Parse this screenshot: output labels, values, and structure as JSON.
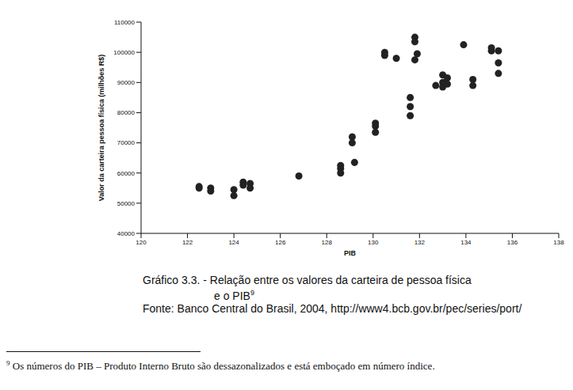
{
  "chart_data": {
    "type": "scatter",
    "title": [
      "Gráfico 3.3. - Relação entre os valores da carteira de pessoa física",
      "e o PIB"
    ],
    "annotations": [
      "9",
      "Fonte: Banco Central do Brasil, 2004, http://www4.bcb.gov.br/pec/series/port/",
      "9",
      "Os números do PIB – Produto Interno Bruto são dessazonalizados e está emboçado em número índice."
    ],
    "x_label": "PIB",
    "y_label": "Valor da carteira pessoa física (milhões R$)",
    "x": [
      122.5,
      122.5,
      123,
      123,
      124,
      124,
      124.4,
      124.4,
      124.7,
      124.7,
      126.8,
      128.6,
      128.6,
      128.6,
      129.1,
      129.1,
      129.2,
      130.1,
      130.1,
      130.1,
      130.5,
      130.5,
      131,
      131.6,
      131.6,
      131.6,
      131.8,
      131.8,
      131.8,
      131.9,
      132.7,
      133,
      133,
      133,
      133.2,
      133.2,
      133.9,
      134.3,
      134.3,
      135.1,
      135.1,
      135.4,
      135.4,
      135.4
    ],
    "values": [
      55500,
      55000,
      55000,
      54000,
      54500,
      52500,
      57000,
      56000,
      56500,
      55000,
      59000,
      62500,
      61500,
      60000,
      72000,
      70000,
      63500,
      76500,
      75500,
      73500,
      100000,
      99000,
      98000,
      85000,
      82000,
      79000,
      105000,
      103500,
      97500,
      99500,
      89000,
      92500,
      90000,
      88500,
      91500,
      89500,
      102500,
      91000,
      89000,
      101500,
      100500,
      100500,
      96500,
      93000
    ],
    "color": "#222222",
    "marker": "circle",
    "xlim": [
      120,
      138
    ],
    "xticks": [
      120,
      122,
      124,
      126,
      128,
      130,
      132,
      134,
      136,
      138
    ],
    "ylim": [
      40000,
      110000
    ],
    "yticks": [
      40000,
      50000,
      60000,
      70000,
      80000,
      90000,
      100000,
      110000
    ],
    "grid": false
  }
}
